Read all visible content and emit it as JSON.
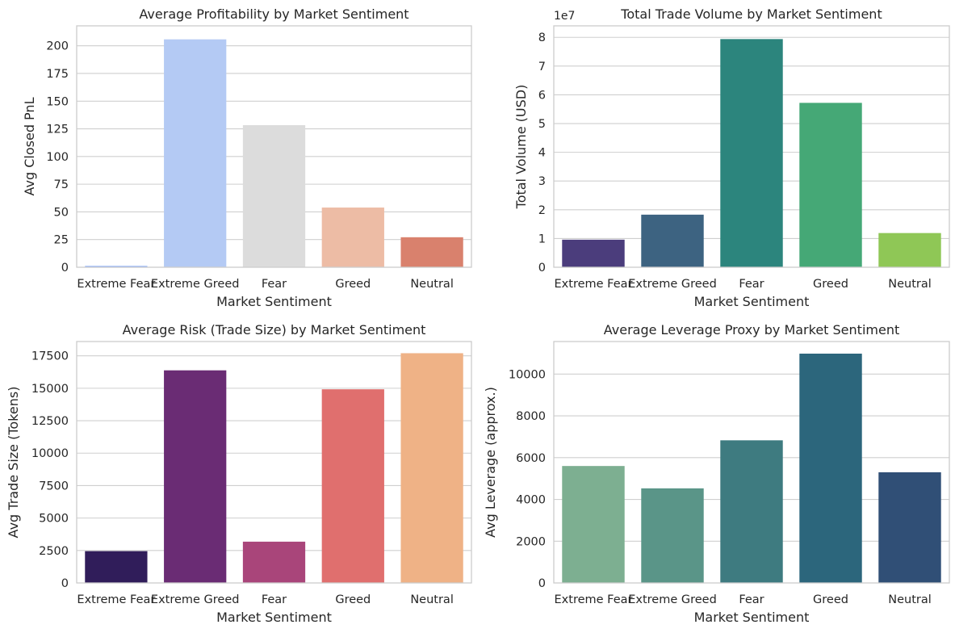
{
  "chart_data": [
    {
      "type": "bar",
      "title": "Average Profitability by Market Sentiment",
      "xlabel": "Market Sentiment",
      "ylabel": "Avg Closed PnL",
      "categories": [
        "Extreme Fear",
        "Extreme Greed",
        "Fear",
        "Greed",
        "Neutral"
      ],
      "values": [
        1.2,
        205.8,
        128.3,
        53.9,
        27.1
      ],
      "colors": [
        "#8fb0fb",
        "#b4caf4",
        "#dcdcdc",
        "#edbca5",
        "#d9816d"
      ],
      "ylim": [
        0,
        218
      ],
      "yticks": [
        0,
        25,
        50,
        75,
        100,
        125,
        150,
        175,
        200
      ],
      "ytick_labels": [
        "0",
        "25",
        "50",
        "75",
        "100",
        "125",
        "150",
        "175",
        "200"
      ],
      "offset_label": "",
      "grid": true
    },
    {
      "type": "bar",
      "title": "Total Trade Volume by Market Sentiment",
      "xlabel": "Market Sentiment",
      "ylabel": "Total Volume (USD)",
      "categories": [
        "Extreme Fear",
        "Extreme Greed",
        "Fear",
        "Greed",
        "Neutral"
      ],
      "values": [
        9600000,
        18300000,
        79400000,
        57200000,
        11900000
      ],
      "colors": [
        "#4b3d7c",
        "#3d6381",
        "#2c857d",
        "#45a876",
        "#8fc756"
      ],
      "ylim": [
        0,
        84000000
      ],
      "yticks": [
        0,
        10000000,
        20000000,
        30000000,
        40000000,
        50000000,
        60000000,
        70000000,
        80000000
      ],
      "ytick_labels": [
        "0",
        "1",
        "2",
        "3",
        "4",
        "5",
        "6",
        "7",
        "8"
      ],
      "offset_label": "1e7",
      "grid": true
    },
    {
      "type": "bar",
      "title": "Average Risk (Trade Size) by Market Sentiment",
      "xlabel": "Market Sentiment",
      "ylabel": "Avg Trade Size (Tokens)",
      "categories": [
        "Extreme Fear",
        "Extreme Greed",
        "Fear",
        "Greed",
        "Neutral"
      ],
      "values": [
        2450,
        16380,
        3180,
        14920,
        17700
      ],
      "colors": [
        "#301d5a",
        "#6a2c74",
        "#a9457a",
        "#e06f6e",
        "#efb286"
      ],
      "ylim": [
        0,
        18600
      ],
      "yticks": [
        0,
        2500,
        5000,
        7500,
        10000,
        12500,
        15000,
        17500
      ],
      "ytick_labels": [
        "0",
        "2500",
        "5000",
        "7500",
        "10000",
        "12500",
        "15000",
        "17500"
      ],
      "offset_label": "",
      "grid": true
    },
    {
      "type": "bar",
      "title": "Average Leverage Proxy by Market Sentiment",
      "xlabel": "Market Sentiment",
      "ylabel": "Avg Leverage (approx.)",
      "categories": [
        "Extreme Fear",
        "Extreme Greed",
        "Fear",
        "Greed",
        "Neutral"
      ],
      "values": [
        5600,
        4530,
        6830,
        10980,
        5300
      ],
      "colors": [
        "#7daf91",
        "#5a9588",
        "#3e7b80",
        "#2c667c",
        "#304f76"
      ],
      "ylim": [
        0,
        11560
      ],
      "yticks": [
        0,
        2000,
        4000,
        6000,
        8000,
        10000
      ],
      "ytick_labels": [
        "0",
        "2000",
        "4000",
        "6000",
        "8000",
        "10000"
      ],
      "offset_label": "",
      "grid": true
    }
  ]
}
